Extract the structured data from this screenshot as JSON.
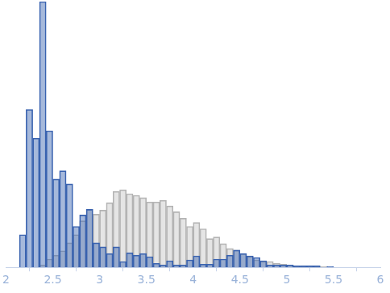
{
  "chart_data": {
    "type": "histogram",
    "bins": [
      2.143,
      2.214,
      2.286,
      2.357,
      2.429,
      2.5,
      2.571,
      2.643,
      2.714,
      2.786,
      2.857,
      2.929,
      3.0,
      3.071,
      3.143,
      3.214,
      3.286,
      3.357,
      3.429,
      3.5,
      3.571,
      3.643,
      3.714,
      3.786,
      3.857,
      3.929,
      4.0,
      4.071,
      4.143,
      4.214,
      4.286,
      4.357,
      4.429,
      4.5,
      4.571,
      4.643,
      4.714,
      4.786,
      4.857,
      4.929,
      5.0,
      5.071,
      5.143,
      5.214,
      5.286,
      5.357,
      5.429,
      5.5
    ],
    "series": [
      {
        "color": "#3a63b0",
        "values": [
          12.3,
          59.4,
          48.6,
          100,
          51.4,
          33.2,
          36.3,
          31.4,
          15.4,
          19.7,
          21.8,
          9.2,
          7.7,
          5.2,
          7.7,
          2.2,
          5.5,
          4.6,
          5.2,
          4,
          1.5,
          0.9,
          2.5,
          0.9,
          0.9,
          2.8,
          4.3,
          1.2,
          1.2,
          3.1,
          3.1,
          4.6,
          6.5,
          5.2,
          4.3,
          3.7,
          2.5,
          0.9,
          0.9,
          0.9,
          0.9,
          0.6,
          0.6,
          0.6,
          0.6,
          0,
          0.3
        ]
      },
      {
        "color": "#b4b4b4",
        "values": [
          0,
          0,
          0,
          0.9,
          3.1,
          4.6,
          6.2,
          9.2,
          12.3,
          17.5,
          21.8,
          20,
          21.5,
          24.3,
          28.6,
          29.2,
          27.7,
          27.1,
          26.2,
          24.6,
          24.6,
          25.2,
          23.1,
          20.9,
          18.5,
          15.4,
          16.9,
          14.5,
          10.8,
          11.4,
          8.9,
          7.1,
          6.5,
          5.2,
          4,
          2.8,
          2.2,
          2.2,
          1.5,
          1.2,
          0.9,
          0.6,
          0.6,
          0.3,
          0.3,
          0.3,
          0
        ]
      }
    ],
    "xlim": [
      2,
      6
    ],
    "xticks": [
      2,
      2.5,
      3,
      3.5,
      4,
      4.5,
      5,
      5.5,
      6
    ],
    "ylim": [
      0,
      100
    ],
    "grid": false,
    "tick_labels": "x"
  }
}
